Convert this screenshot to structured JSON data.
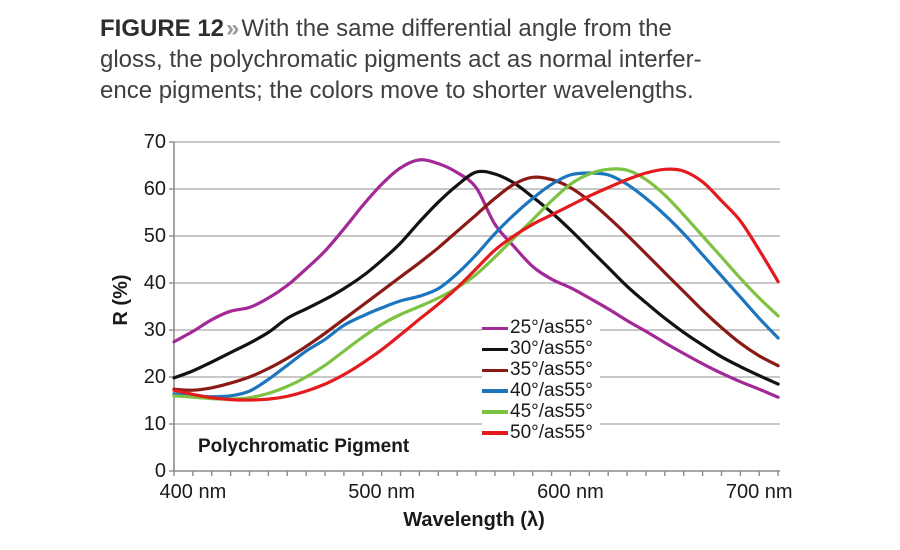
{
  "figure": {
    "label": "FIGURE 12",
    "separator": "»",
    "title_lines": [
      "With the same differential angle from the",
      "gloss, the polychromatic pigments act as normal interfer-",
      "ence pigments; the colors move to shorter wavelengths."
    ]
  },
  "chart_data": {
    "type": "line",
    "title": "",
    "xlabel": "Wavelength (λ)",
    "ylabel": "R (%)",
    "annotation": "Polychromatic Pigment",
    "xlim": [
      390,
      711
    ],
    "ylim": [
      0,
      70
    ],
    "grid": "horizontal",
    "legend_position": "inside-right",
    "x_major_ticks": [
      400,
      500,
      600,
      700
    ],
    "x_tick_labels": [
      "400 nm",
      "500 nm",
      "600 nm",
      "700 nm"
    ],
    "x_minor_tick_step": 10,
    "y_ticks": [
      0,
      10,
      20,
      30,
      40,
      50,
      60,
      70
    ],
    "x": [
      390,
      400,
      410,
      420,
      430,
      440,
      450,
      460,
      470,
      480,
      490,
      500,
      510,
      520,
      530,
      540,
      550,
      560,
      570,
      580,
      590,
      600,
      610,
      620,
      630,
      640,
      650,
      660,
      670,
      680,
      690,
      700,
      710
    ],
    "series": [
      {
        "name": "25°/as55°",
        "color": "#a32a96",
        "values": [
          27.5,
          29.7,
          32.2,
          34.0,
          34.8,
          36.8,
          39.5,
          43.0,
          46.8,
          51.5,
          56.5,
          61.0,
          64.5,
          66.2,
          65.4,
          63.5,
          60.3,
          52.5,
          47.8,
          43.5,
          40.8,
          39.0,
          36.8,
          34.5,
          32.0,
          29.7,
          27.3,
          25.0,
          22.8,
          20.8,
          19.0,
          17.4,
          15.7
        ]
      },
      {
        "name": "30°/as55°",
        "color": "#121212",
        "values": [
          19.8,
          21.3,
          23.2,
          25.2,
          27.2,
          29.5,
          32.5,
          34.5,
          36.5,
          38.8,
          41.5,
          44.8,
          48.5,
          53.0,
          57.2,
          60.8,
          63.6,
          63.2,
          61.3,
          58.3,
          55.0,
          51.3,
          47.3,
          43.3,
          39.3,
          35.8,
          32.5,
          29.5,
          26.8,
          24.3,
          22.2,
          20.3,
          18.5
        ]
      },
      {
        "name": "35°/as55°",
        "color": "#8a1a15",
        "values": [
          17.4,
          17.2,
          17.7,
          18.7,
          20.0,
          21.8,
          24.0,
          26.5,
          29.3,
          32.3,
          35.3,
          38.3,
          41.3,
          44.3,
          47.5,
          51.0,
          54.5,
          58.0,
          61.0,
          62.5,
          62.0,
          60.3,
          57.5,
          54.0,
          50.2,
          46.2,
          42.2,
          38.2,
          34.2,
          30.5,
          27.2,
          24.5,
          22.4
        ]
      },
      {
        "name": "40°/as55°",
        "color": "#1c75bd",
        "values": [
          16.4,
          16.0,
          15.8,
          16.0,
          17.0,
          19.5,
          22.5,
          25.5,
          28.0,
          31.0,
          33.0,
          34.7,
          36.2,
          37.2,
          38.8,
          42.0,
          46.0,
          50.5,
          54.5,
          58.0,
          61.0,
          63.0,
          63.4,
          63.0,
          61.0,
          58.0,
          54.5,
          50.5,
          46.0,
          41.5,
          37.0,
          32.5,
          28.3
        ]
      },
      {
        "name": "45°/as55°",
        "color": "#7dc242",
        "values": [
          16.0,
          15.7,
          15.4,
          15.3,
          15.6,
          16.5,
          18.0,
          20.0,
          22.5,
          25.5,
          28.5,
          31.2,
          33.3,
          35.0,
          36.8,
          39.0,
          41.8,
          45.5,
          49.5,
          53.5,
          57.5,
          61.0,
          63.2,
          64.2,
          64.0,
          62.0,
          58.7,
          54.5,
          50.0,
          45.5,
          41.0,
          36.8,
          33.0
        ]
      },
      {
        "name": "50°/as55°",
        "color": "#e41b1e",
        "values": [
          17.2,
          16.3,
          15.6,
          15.2,
          15.1,
          15.3,
          15.9,
          17.0,
          18.5,
          20.5,
          23.0,
          25.8,
          29.0,
          32.3,
          35.5,
          39.0,
          43.0,
          47.0,
          50.0,
          52.5,
          54.5,
          56.5,
          58.5,
          60.3,
          62.0,
          63.4,
          64.2,
          63.8,
          61.5,
          57.5,
          53.2,
          47.0,
          40.3
        ]
      }
    ]
  },
  "colors": {
    "gridline": "#a6a6a6",
    "axis": "#8c8c8c",
    "tick_label": "#1a1a1a",
    "figure_label": "#2d2d2d",
    "chevron": "#999999",
    "body_text": "#3f3f3f"
  }
}
